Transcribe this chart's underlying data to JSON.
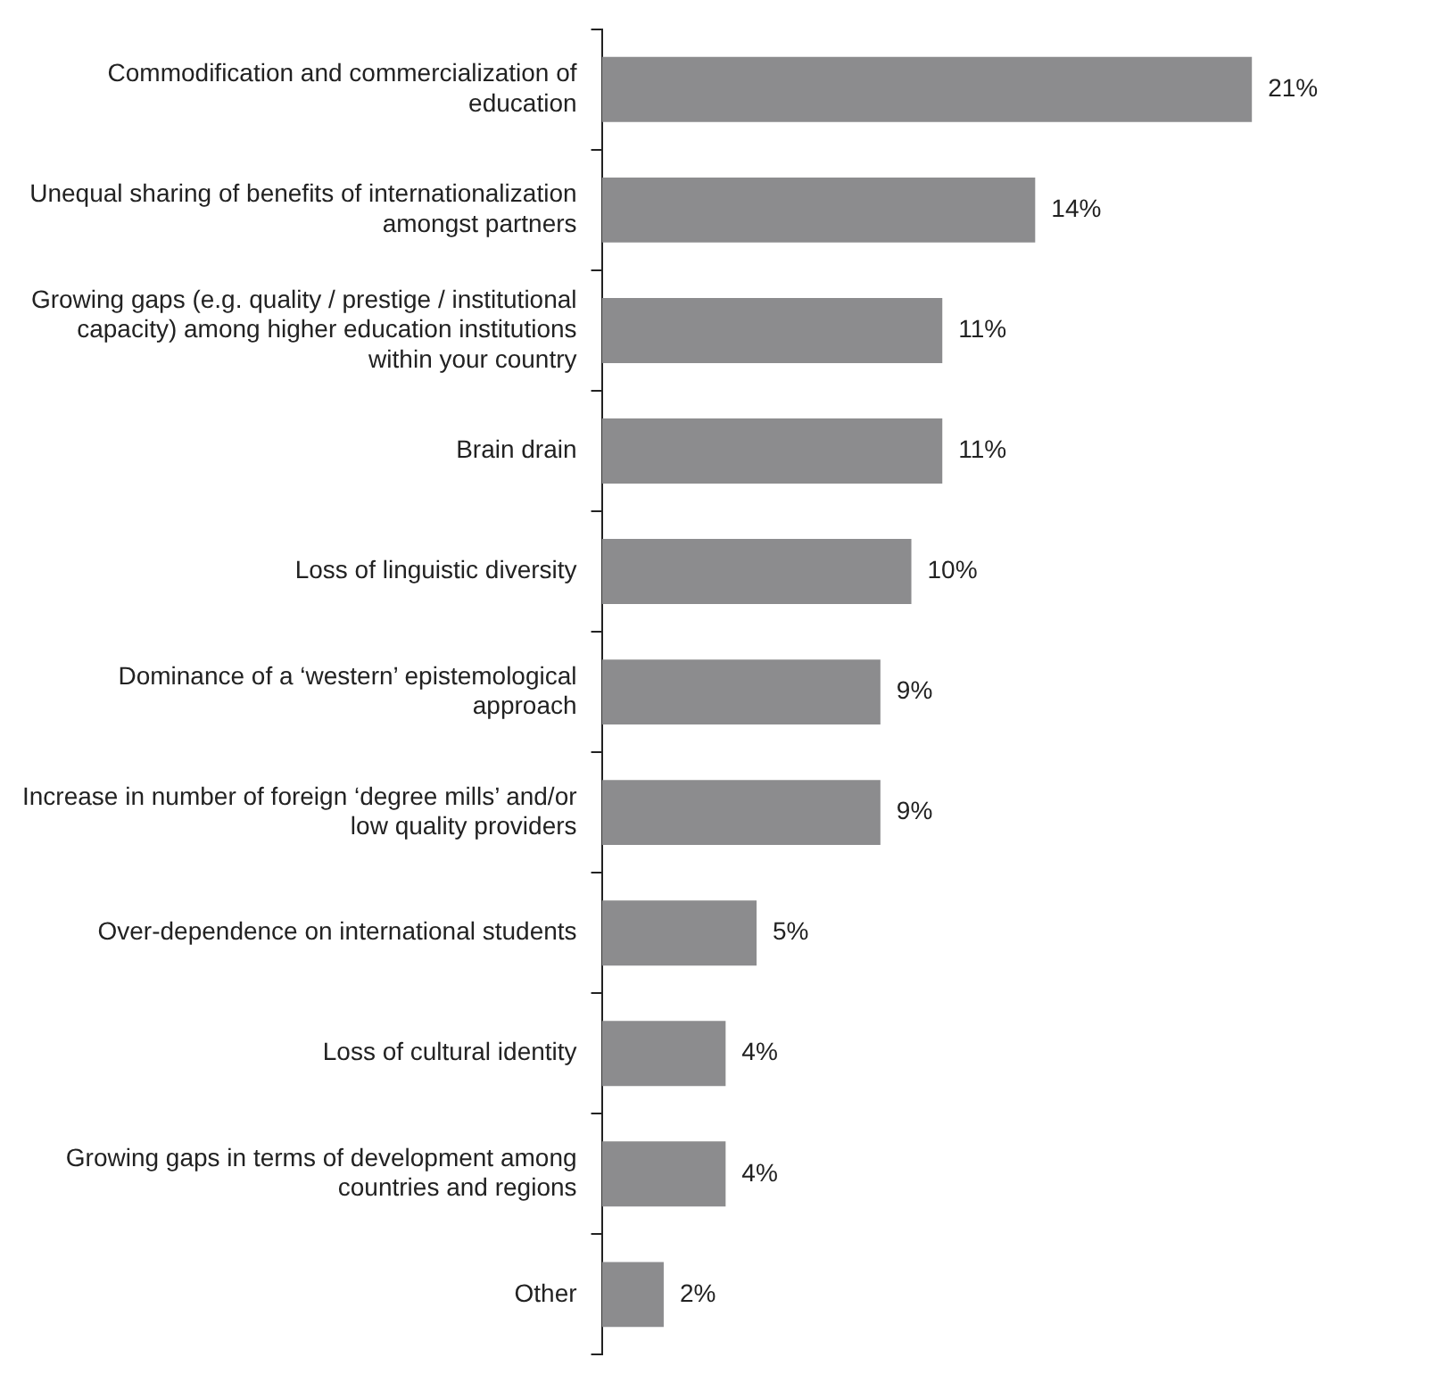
{
  "chart_data": {
    "type": "bar",
    "orientation": "horizontal",
    "categories": [
      "Commodification and commercialization of education",
      "Unequal sharing of benefits of internationalization amongst partners",
      "Growing gaps (e.g. quality / prestige / institutional capacity) among higher education institutions within your country",
      "Brain drain",
      "Loss of linguistic diversity",
      "Dominance of a ‘western’ epistemological approach",
      "Increase in number of foreign ‘degree mills’ and/or low quality providers",
      "Over-dependence on international students",
      "Loss of cultural identity",
      "Growing gaps in terms of development among countries and regions",
      "Other"
    ],
    "values": [
      21,
      14,
      11,
      11,
      10,
      9,
      9,
      5,
      4,
      4,
      2
    ],
    "value_labels": [
      "21%",
      "14%",
      "11%",
      "11%",
      "10%",
      "9%",
      "9%",
      "5%",
      "4%",
      "4%",
      "2%"
    ],
    "color": "#8c8c8e",
    "grid": false,
    "legend": false
  }
}
